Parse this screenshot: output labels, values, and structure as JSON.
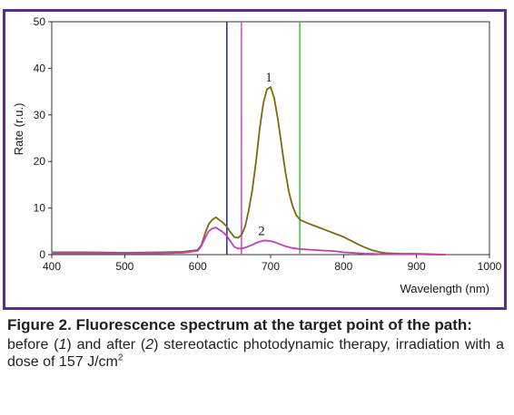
{
  "colors": {
    "frame": "#5b2d8e",
    "curve_before": "#7a6a10",
    "curve_after": "#c53fb8",
    "marker_blue": "#2a36a8",
    "marker_pink": "#d64fc8",
    "marker_green": "#4cc04a"
  },
  "chart_data": {
    "type": "line",
    "title": "",
    "xlabel": "Wavelength (nm)",
    "ylabel": "Rate (r.u.)",
    "xlim": [
      400,
      1000
    ],
    "ylim": [
      0,
      50
    ],
    "xticks": [
      400,
      500,
      600,
      700,
      800,
      900,
      1000
    ],
    "yticks": [
      0,
      10,
      20,
      30,
      40,
      50
    ],
    "grid": false,
    "vertical_markers": [
      640,
      660,
      740
    ],
    "series": [
      {
        "label": "1",
        "x": [
          400,
          450,
          500,
          550,
          580,
          600,
          605,
          610,
          615,
          620,
          625,
          630,
          635,
          640,
          645,
          650,
          655,
          660,
          665,
          670,
          675,
          680,
          685,
          690,
          695,
          700,
          705,
          710,
          715,
          720,
          725,
          730,
          735,
          740,
          750,
          760,
          770,
          780,
          790,
          800,
          810,
          820,
          830,
          840,
          850,
          860,
          880,
          900,
          920,
          940
        ],
        "y": [
          0.5,
          0.5,
          0.4,
          0.5,
          0.6,
          1.0,
          2.0,
          4.5,
          6.5,
          7.5,
          8.0,
          7.4,
          6.8,
          6.0,
          4.8,
          3.8,
          3.6,
          4.2,
          6.0,
          9.5,
          14.0,
          20.0,
          27.0,
          32.5,
          35.5,
          36.0,
          33.5,
          29.0,
          23.5,
          18.0,
          13.5,
          10.5,
          8.5,
          7.5,
          6.8,
          6.2,
          5.6,
          5.0,
          4.4,
          3.8,
          3.0,
          2.2,
          1.5,
          0.9,
          0.5,
          0.3,
          0.2,
          0.2,
          0.1,
          0.0
        ]
      },
      {
        "label": "2",
        "x": [
          400,
          450,
          500,
          550,
          580,
          600,
          605,
          610,
          615,
          620,
          625,
          630,
          635,
          640,
          645,
          650,
          655,
          660,
          665,
          670,
          675,
          680,
          685,
          690,
          695,
          700,
          705,
          710,
          715,
          720,
          725,
          730,
          735,
          740,
          750,
          760,
          770,
          780,
          790,
          800,
          810,
          820,
          830,
          840,
          850,
          860,
          880,
          900,
          920,
          940
        ],
        "y": [
          0.3,
          0.3,
          0.3,
          0.3,
          0.4,
          0.8,
          1.8,
          3.5,
          5.0,
          5.6,
          5.8,
          5.3,
          4.8,
          4.0,
          2.8,
          1.7,
          1.3,
          1.3,
          1.5,
          1.8,
          2.1,
          2.5,
          2.8,
          3.0,
          3.0,
          2.9,
          2.7,
          2.4,
          2.1,
          1.8,
          1.6,
          1.4,
          1.3,
          1.2,
          1.1,
          1.0,
          0.9,
          0.8,
          0.7,
          0.5,
          0.4,
          0.3,
          0.2,
          0.2,
          0.1,
          0.1,
          0.1,
          0.1,
          0.0,
          0.0
        ]
      }
    ]
  },
  "caption": {
    "title": "Figure 2. Fluorescence spectrum at the target point of the path:",
    "body_parts": [
      "before (",
      "1",
      ") and after (",
      "2",
      ") stereotactic photodynamic therapy, irradiation with a dose of 157 J/cm",
      "2"
    ]
  }
}
